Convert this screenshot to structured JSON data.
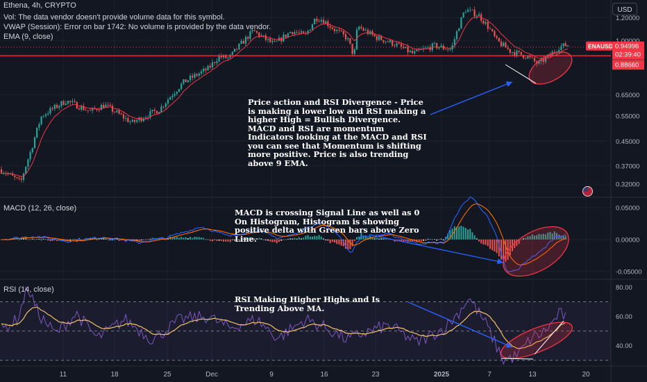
{
  "header": {
    "symbol_line": "Ethena, 4h, CRYPTO",
    "vol_line": "Vol: The data vendor doesn't provide volume data for this symbol.",
    "vwap_line": "VWAP (Session): Error on bar 1742: No volume is provided by the data vendor.",
    "ema_line": "EMA (9, close)",
    "currency_button": "USD"
  },
  "price_tags": {
    "ticker": "ENAUSD",
    "price": "0.94996",
    "countdown": "02:39:40",
    "level": "0.88660"
  },
  "annotations": {
    "price": "Price action and RSI Divergence - Price is making a lower low and RSI making a higher High = Bullish Divergence. MACD and RSI are momentum Indicators looking at the MACD and RSI you can see that Momentum is shifting more positive. Price is also trending above 9 EMA.",
    "macd": "MACD is crossing Signal Line as well as 0 On Histogram, Histogram is showing positive delta with Green bars above Zero Line.",
    "rsi": "RSI Making Higher Highs and Is Trending Above MA."
  },
  "colors": {
    "background": "#131722",
    "up": "#26a69a",
    "down": "#ef5350",
    "ema": "#f23645",
    "macd": "#2962ff",
    "signal": "#ff6d00",
    "rsi": "#7e57c2",
    "rsi_ma": "#f5c26b",
    "hline": "#f23645",
    "arrow": "#2962ff",
    "ellipse": "#f23645"
  },
  "chart_data": [
    {
      "type": "candlestick",
      "title": "Ethena, 4h, CRYPTO",
      "y_scale": "log",
      "x_tick_labels": [
        "11",
        "18",
        "25",
        "Dec",
        "9",
        "16",
        "23",
        "2025",
        "7",
        "13",
        "20"
      ],
      "y_tick_labels": [
        "1.20000",
        "1.00000",
        "0.65000",
        "0.55000",
        "0.45000",
        "0.37000",
        "0.32000"
      ],
      "ylim": [
        0.29,
        1.38
      ],
      "last_price": 0.94996,
      "horizontal_line": 0.8866,
      "price_path": [
        [
          0,
          0.36
        ],
        [
          30,
          0.325
        ],
        [
          45,
          0.42
        ],
        [
          60,
          0.55
        ],
        [
          95,
          0.62
        ],
        [
          130,
          0.57
        ],
        [
          150,
          0.6
        ],
        [
          190,
          0.52
        ],
        [
          230,
          0.58
        ],
        [
          265,
          0.72
        ],
        [
          300,
          0.8
        ],
        [
          315,
          0.88
        ],
        [
          330,
          0.87
        ],
        [
          365,
          1.08
        ],
        [
          380,
          1.02
        ],
        [
          395,
          0.97
        ],
        [
          420,
          1.08
        ],
        [
          440,
          1.04
        ],
        [
          455,
          1.2
        ],
        [
          465,
          1.18
        ],
        [
          480,
          1.1
        ],
        [
          500,
          1.02
        ],
        [
          510,
          0.88
        ],
        [
          515,
          1.12
        ],
        [
          540,
          1.03
        ],
        [
          570,
          0.97
        ],
        [
          595,
          0.9
        ],
        [
          625,
          0.96
        ],
        [
          650,
          0.93
        ],
        [
          670,
          1.28
        ],
        [
          690,
          1.22
        ],
        [
          705,
          1.1
        ],
        [
          715,
          1.0
        ],
        [
          735,
          0.92
        ],
        [
          760,
          0.88
        ],
        [
          775,
          0.83
        ],
        [
          790,
          0.88
        ],
        [
          805,
          0.95
        ],
        [
          820,
          0.97
        ]
      ],
      "series": [
        {
          "name": "EMA (9, close)"
        }
      ]
    },
    {
      "type": "line",
      "title": "MACD (12, 26, close)",
      "y_tick_labels": [
        "0.05000",
        "0.00000",
        "-0.05000"
      ],
      "ylim": [
        -0.06,
        0.065
      ],
      "macd_path": [
        [
          0,
          0
        ],
        [
          50,
          0.005
        ],
        [
          100,
          -0.003
        ],
        [
          150,
          0.004
        ],
        [
          200,
          -0.005
        ],
        [
          240,
          0.003
        ],
        [
          290,
          0.02
        ],
        [
          330,
          0.005
        ],
        [
          370,
          0.015
        ],
        [
          400,
          0.002
        ],
        [
          430,
          0.01
        ],
        [
          460,
          0.028
        ],
        [
          490,
          0.005
        ],
        [
          505,
          -0.022
        ],
        [
          520,
          0.005
        ],
        [
          560,
          0.008
        ],
        [
          600,
          -0.006
        ],
        [
          640,
          -0.005
        ],
        [
          660,
          0.045
        ],
        [
          678,
          0.068
        ],
        [
          700,
          0.04
        ],
        [
          715,
          0.005
        ],
        [
          730,
          -0.052
        ],
        [
          745,
          -0.048
        ],
        [
          760,
          -0.032
        ],
        [
          780,
          -0.018
        ],
        [
          800,
          0.005
        ],
        [
          815,
          0.008
        ]
      ],
      "series": [
        {
          "name": "MACD"
        },
        {
          "name": "Signal"
        },
        {
          "name": "Histogram"
        }
      ]
    },
    {
      "type": "line",
      "title": "RSI (14, close)",
      "y_tick_labels": [
        "80.00",
        "60.00",
        "40.00"
      ],
      "ylim": [
        27,
        85
      ],
      "bands": [
        70,
        50,
        30
      ],
      "rsi_path": [
        [
          0,
          50
        ],
        [
          25,
          58
        ],
        [
          40,
          80
        ],
        [
          55,
          62
        ],
        [
          80,
          48
        ],
        [
          110,
          62
        ],
        [
          140,
          45
        ],
        [
          180,
          58
        ],
        [
          220,
          44
        ],
        [
          260,
          58
        ],
        [
          300,
          60
        ],
        [
          330,
          52
        ],
        [
          370,
          58
        ],
        [
          400,
          45
        ],
        [
          440,
          58
        ],
        [
          470,
          52
        ],
        [
          500,
          44
        ],
        [
          520,
          48
        ],
        [
          560,
          54
        ],
        [
          600,
          42
        ],
        [
          640,
          52
        ],
        [
          660,
          62
        ],
        [
          675,
          73
        ],
        [
          700,
          55
        ],
        [
          715,
          40
        ],
        [
          725,
          30
        ],
        [
          745,
          33
        ],
        [
          765,
          45
        ],
        [
          780,
          48
        ],
        [
          795,
          55
        ],
        [
          805,
          62
        ],
        [
          815,
          60
        ]
      ],
      "series": [
        {
          "name": "RSI"
        },
        {
          "name": "RSI-based MA"
        }
      ]
    }
  ]
}
